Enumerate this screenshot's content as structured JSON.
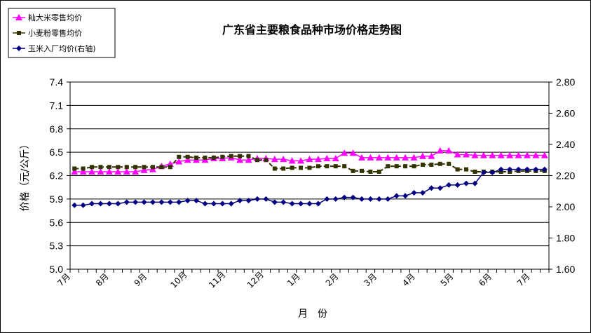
{
  "chart_data": {
    "type": "line",
    "title": "广东省主要粮食品种市场价格走势图",
    "xlabel": "月　份",
    "ylabel": "价格（元/公斤）",
    "ylim_left": [
      5.0,
      7.4
    ],
    "yticks_left": [
      "5.0",
      "5.3",
      "5.6",
      "5.9",
      "6.2",
      "6.5",
      "6.8",
      "7.1",
      "7.4"
    ],
    "ylim_right": [
      1.6,
      2.8
    ],
    "yticks_right": [
      "1.60",
      "1.80",
      "2.00",
      "2.20",
      "2.40",
      "2.60",
      "2.80"
    ],
    "month_labels": [
      "7月",
      "8月",
      "9月",
      "10月",
      "11月",
      "12月",
      "1月",
      "2月",
      "3月",
      "4月",
      "5月",
      "6月",
      "7月"
    ],
    "grid": true,
    "legend_position": "top-left",
    "series": [
      {
        "name": "籼大米零售均价",
        "axis": "left",
        "color": "#ff00ff",
        "marker": "triangle",
        "values": [
          6.25,
          6.25,
          6.25,
          6.25,
          6.25,
          6.25,
          6.25,
          6.25,
          6.27,
          6.28,
          6.32,
          6.35,
          6.38,
          6.4,
          6.4,
          6.4,
          6.42,
          6.42,
          6.43,
          6.4,
          6.4,
          6.42,
          6.42,
          6.41,
          6.41,
          6.39,
          6.39,
          6.41,
          6.41,
          6.42,
          6.42,
          6.49,
          6.49,
          6.43,
          6.43,
          6.43,
          6.43,
          6.43,
          6.43,
          6.43,
          6.45,
          6.45,
          6.52,
          6.52,
          6.47,
          6.47,
          6.46,
          6.46,
          6.46,
          6.46,
          6.46,
          6.46,
          6.46,
          6.46,
          6.46
        ]
      },
      {
        "name": "小麦粉零售均价",
        "axis": "left",
        "color": "#333300",
        "marker": "square",
        "values": [
          6.29,
          6.29,
          6.31,
          6.31,
          6.31,
          6.31,
          6.31,
          6.31,
          6.31,
          6.31,
          6.31,
          6.31,
          6.44,
          6.44,
          6.43,
          6.43,
          6.43,
          6.44,
          6.45,
          6.45,
          6.45,
          6.4,
          6.4,
          6.29,
          6.29,
          6.3,
          6.3,
          6.3,
          6.32,
          6.32,
          6.32,
          6.32,
          6.26,
          6.26,
          6.25,
          6.25,
          6.32,
          6.32,
          6.32,
          6.32,
          6.34,
          6.34,
          6.35,
          6.35,
          6.28,
          6.28,
          6.25,
          6.25,
          6.25,
          6.25,
          6.25,
          6.26,
          6.26,
          6.26,
          6.26
        ]
      },
      {
        "name": "玉米入厂均价(右轴)",
        "axis": "right",
        "color": "#000080",
        "marker": "diamond",
        "values": [
          2.01,
          2.01,
          2.02,
          2.02,
          2.02,
          2.02,
          2.03,
          2.03,
          2.03,
          2.03,
          2.03,
          2.03,
          2.03,
          2.04,
          2.04,
          2.02,
          2.02,
          2.02,
          2.02,
          2.04,
          2.04,
          2.05,
          2.05,
          2.03,
          2.03,
          2.02,
          2.02,
          2.02,
          2.02,
          2.05,
          2.05,
          2.06,
          2.06,
          2.05,
          2.05,
          2.05,
          2.05,
          2.07,
          2.07,
          2.09,
          2.09,
          2.12,
          2.12,
          2.14,
          2.14,
          2.15,
          2.15,
          2.22,
          2.22,
          2.24,
          2.24,
          2.24,
          2.24,
          2.24,
          2.24
        ]
      }
    ]
  }
}
